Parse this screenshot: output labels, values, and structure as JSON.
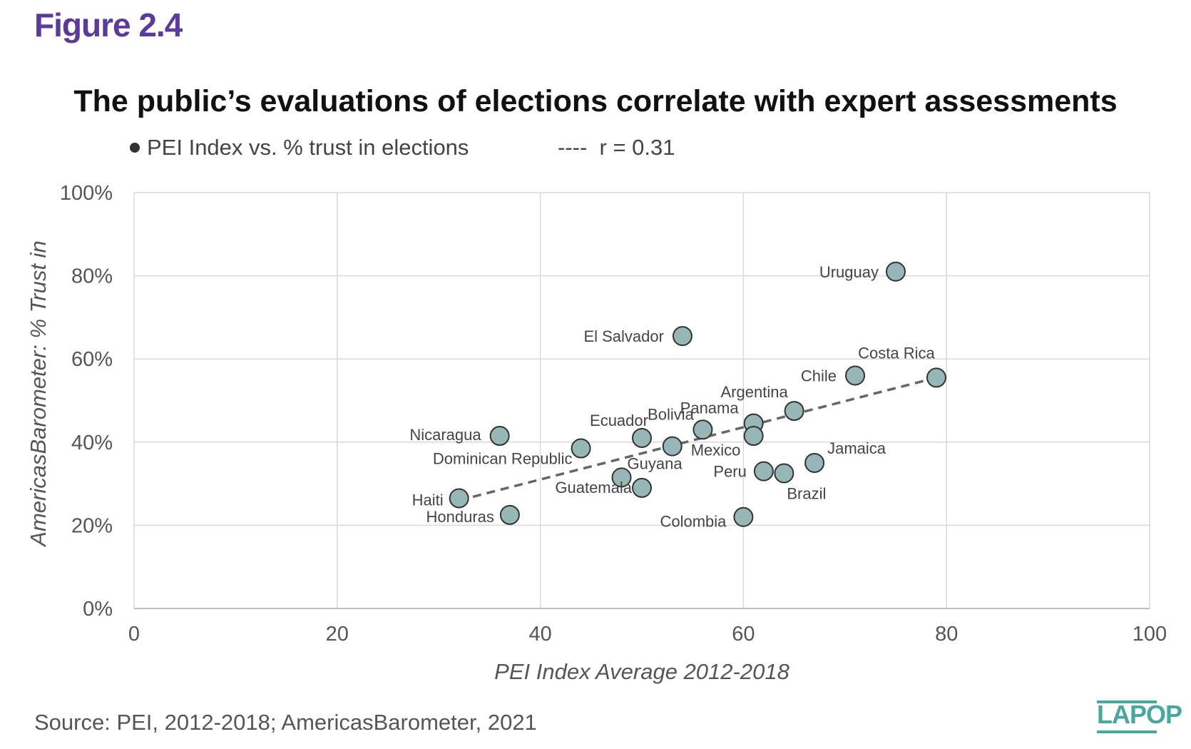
{
  "figure_label": "Figure 2.4",
  "source": "Source: PEI, 2012-2018; AmericasBarometer, 2021",
  "logo": "LAPOP",
  "colors": {
    "accent": "#5b3a9a",
    "marker_fill": "#96b7b6",
    "marker_stroke": "#333333",
    "trend": "#666666",
    "grid": "#d9d9d9",
    "logo": "#4aa7a0"
  },
  "chart_data": {
    "type": "scatter",
    "title": "The public’s evaluations of elections correlate with expert assessments",
    "xlabel": "PEI Index Average 2012-2018",
    "ylabel": "AmericasBarometer: % Trust in",
    "xlim": [
      0,
      100
    ],
    "ylim": [
      0,
      100
    ],
    "xticks": [
      "0",
      "20",
      "40",
      "60",
      "80",
      "100"
    ],
    "yticks": [
      "0%",
      "20%",
      "40%",
      "60%",
      "80%",
      "100%"
    ],
    "grid": true,
    "legend": {
      "position": "top-left",
      "series_label": "PEI Index vs. % trust in elections",
      "trend_symbol": "----",
      "trend_label": "r = 0.31"
    },
    "series": [
      {
        "points": [
          {
            "label": "Uruguay",
            "x": 75,
            "y": 81
          },
          {
            "label": "El Salvador",
            "x": 54,
            "y": 65.5
          },
          {
            "label": "Costa Rica",
            "x": 79,
            "y": 55.5
          },
          {
            "label": "Chile",
            "x": 71,
            "y": 56
          },
          {
            "label": "Argentina",
            "x": 65,
            "y": 47.5
          },
          {
            "label": "Panama",
            "x": 61,
            "y": 44.5
          },
          {
            "label": "",
            "x": 61,
            "y": 41.5
          },
          {
            "label": "Bolivia",
            "x": 56,
            "y": 43
          },
          {
            "label": "Mexico",
            "x": 53,
            "y": 39
          },
          {
            "label": "Ecuador",
            "x": 50,
            "y": 41
          },
          {
            "label": "Nicaragua",
            "x": 36,
            "y": 41.5
          },
          {
            "label": "Dominican Republic",
            "x": 44,
            "y": 38.5
          },
          {
            "label": "Jamaica",
            "x": 67,
            "y": 35
          },
          {
            "label": "Peru",
            "x": 62,
            "y": 33
          },
          {
            "label": "Brazil",
            "x": 64,
            "y": 32.5
          },
          {
            "label": "Guyana",
            "x": 48,
            "y": 31.5
          },
          {
            "label": "Guatemala",
            "x": 50,
            "y": 29
          },
          {
            "label": "Haiti",
            "x": 32,
            "y": 26.5
          },
          {
            "label": "Honduras",
            "x": 37,
            "y": 22.5
          },
          {
            "label": "Colombia",
            "x": 60,
            "y": 22
          }
        ]
      }
    ],
    "trendline": {
      "x": [
        32,
        79
      ],
      "y": [
        26,
        55.5
      ]
    }
  }
}
